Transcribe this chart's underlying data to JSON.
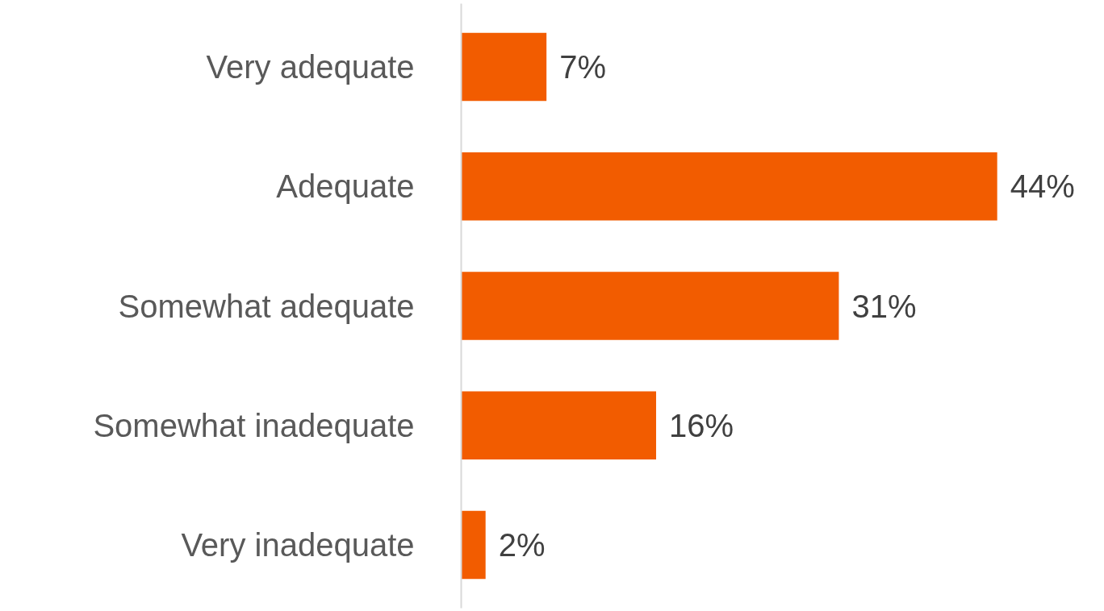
{
  "chart_data": {
    "type": "bar",
    "orientation": "horizontal",
    "categories": [
      "Very adequate",
      "Adequate",
      "Somewhat adequate",
      "Somewhat inadequate",
      "Very inadequate"
    ],
    "values": [
      7,
      44,
      31,
      16,
      2
    ],
    "value_labels": [
      "7%",
      "44%",
      "31%",
      "16%",
      "2%"
    ],
    "color": "#f25c00",
    "grid": false,
    "tick_labels": "y"
  }
}
